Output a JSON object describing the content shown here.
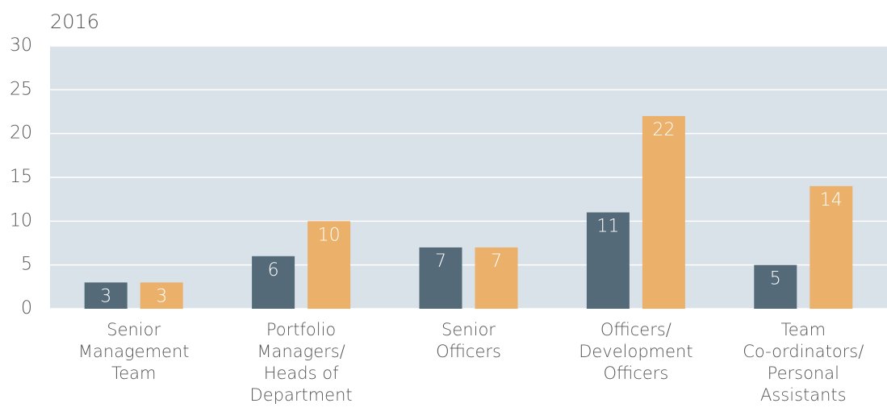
{
  "chart_data": {
    "type": "bar",
    "title": "2016",
    "categories": [
      [
        "Senior",
        "Management",
        "Team"
      ],
      [
        "Portfolio",
        "Managers/",
        "Heads of",
        "Department"
      ],
      [
        "Senior",
        "Officers"
      ],
      [
        "Officers/",
        "Development",
        "Officers"
      ],
      [
        "Team",
        "Co-ordinators/",
        "Personal",
        "Assistants"
      ]
    ],
    "series": [
      {
        "color": "#546a78",
        "values": [
          3,
          6,
          7,
          11,
          5
        ]
      },
      {
        "color": "#ebb06a",
        "values": [
          3,
          10,
          7,
          22,
          14
        ]
      }
    ],
    "ylim": [
      0,
      30
    ],
    "yticks": [
      0,
      5,
      10,
      15,
      20,
      25,
      30
    ],
    "grid": true
  }
}
